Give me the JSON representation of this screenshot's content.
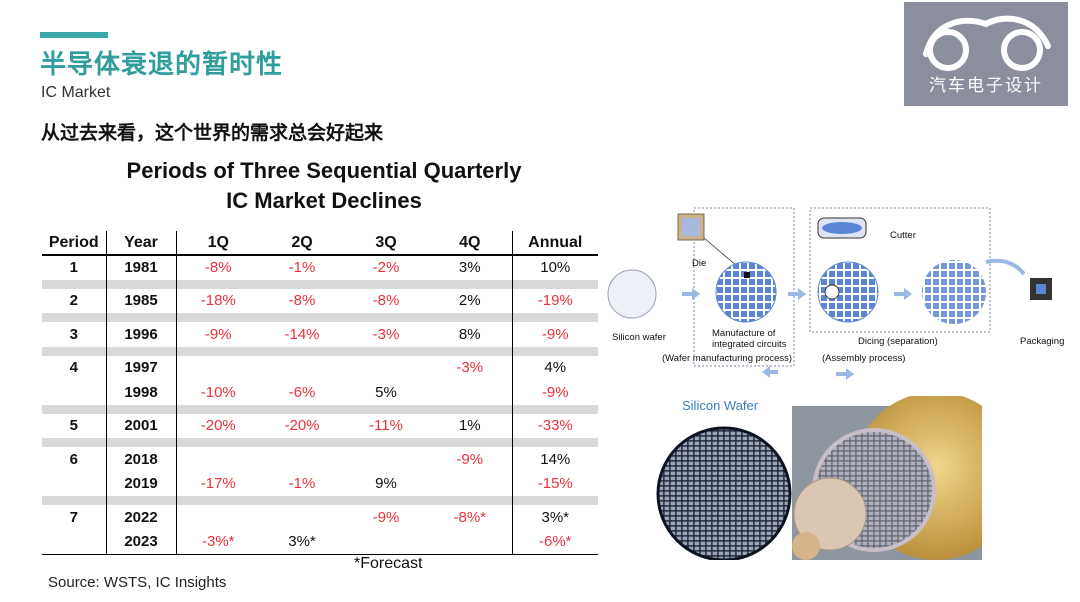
{
  "header": {
    "title": "半导体衰退的暂时性",
    "subtitle": "IC Market",
    "headline": "从过去来看，这个世界的需求总会好起来"
  },
  "logo": {
    "text": "汽车电子设计"
  },
  "table": {
    "title_line1": "Periods of Three Sequential Quarterly",
    "title_line2": "IC Market Declines",
    "columns": [
      "Period",
      "Year",
      "1Q",
      "2Q",
      "3Q",
      "4Q",
      "Annual"
    ],
    "rows": [
      {
        "period": "1",
        "year": "1981",
        "q1": "-8%",
        "q2": "-1%",
        "q3": "-2%",
        "q4": "3%",
        "annual": "10%"
      },
      {
        "period": "2",
        "year": "1985",
        "q1": "-18%",
        "q2": "-8%",
        "q3": "-8%",
        "q4": "2%",
        "annual": "-19%"
      },
      {
        "period": "3",
        "year": "1996",
        "q1": "-9%",
        "q2": "-14%",
        "q3": "-3%",
        "q4": "8%",
        "annual": "-9%"
      },
      {
        "period": "4",
        "year": "1997",
        "q1": "",
        "q2": "",
        "q3": "",
        "q4": "-3%",
        "annual": "4%"
      },
      {
        "period": "",
        "year": "1998",
        "q1": "-10%",
        "q2": "-6%",
        "q3": "5%",
        "q4": "",
        "annual": "-9%"
      },
      {
        "period": "5",
        "year": "2001",
        "q1": "-20%",
        "q2": "-20%",
        "q3": "-11%",
        "q4": "1%",
        "annual": "-33%"
      },
      {
        "period": "6",
        "year": "2018",
        "q1": "",
        "q2": "",
        "q3": "",
        "q4": "-9%",
        "annual": "14%"
      },
      {
        "period": "",
        "year": "2019",
        "q1": "-17%",
        "q2": "-1%",
        "q3": "9%",
        "q4": "",
        "annual": "-15%"
      },
      {
        "period": "7",
        "year": "2022",
        "q1": "",
        "q2": "",
        "q3": "-9%",
        "q4": "-8%*",
        "annual": "3%*"
      },
      {
        "period": "",
        "year": "2023",
        "q1": "-3%*",
        "q2": "3%*",
        "q3": "",
        "q4": "",
        "annual": "-6%*"
      }
    ],
    "forecast_note": "*Forecast",
    "source": "Source: WSTS, IC Insights"
  },
  "diagram": {
    "die": "Die",
    "cutter": "Cutter",
    "silicon_wafer": "Silicon wafer",
    "manufacture_line1": "Manufacture of",
    "manufacture_line2": "integrated circuits",
    "dicing": "Dicing (separation)",
    "packaging": "Packaging",
    "wafer_process": "(Wafer manufacturing process)",
    "assembly_process": "(Assembly process)"
  },
  "photo": {
    "label": "Silicon Wafer"
  },
  "colors": {
    "accent": "#2f9e9c",
    "negative": "#e8323c",
    "stripe": "#d9d9d9",
    "wafer_blue": "#5b86d6",
    "gold": "#c9a24a"
  }
}
